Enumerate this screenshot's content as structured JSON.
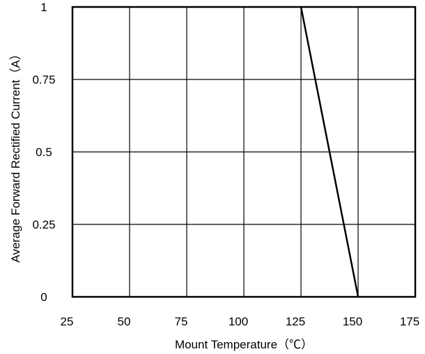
{
  "chart_data": {
    "type": "line",
    "title": "",
    "xlabel": "Mount Temperature（℃）",
    "ylabel": "Average  Forward  Rectified  Current（A）",
    "xlim": [
      25,
      175
    ],
    "ylim": [
      0,
      1
    ],
    "x_ticks": [
      25,
      50,
      75,
      100,
      125,
      150,
      175
    ],
    "y_ticks": [
      0,
      0.25,
      0.5,
      0.75,
      1
    ],
    "x_tick_labels": [
      "25",
      "50",
      "75",
      "100",
      "125",
      "150",
      "175"
    ],
    "y_tick_labels": [
      "0",
      "0.25",
      "0.5",
      "0.75",
      "1"
    ],
    "grid": true,
    "series": [
      {
        "x": [
          125,
          150
        ],
        "y": [
          1,
          0
        ],
        "color": "#000000"
      }
    ]
  }
}
